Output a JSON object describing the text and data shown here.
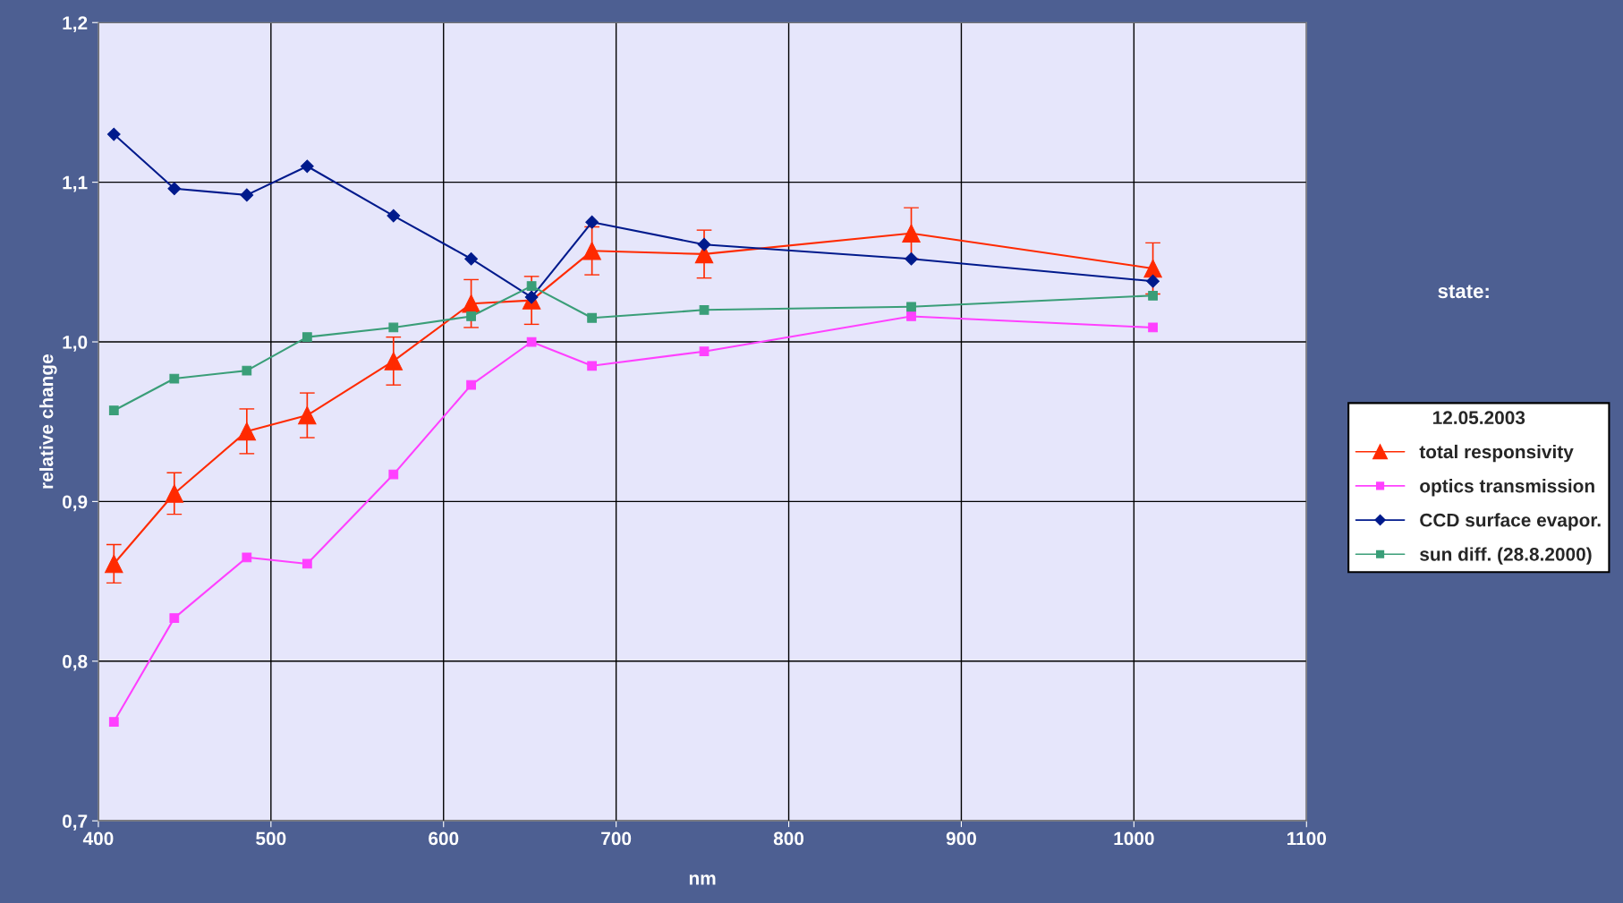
{
  "chart_data": {
    "type": "line",
    "xlabel": "nm",
    "ylabel": "relative change",
    "legend_title": "12.05.2003",
    "annotations": [
      "state:"
    ],
    "x": [
      409,
      444,
      486,
      521,
      571,
      616,
      651,
      686,
      751,
      871,
      1011
    ],
    "xlim": [
      400,
      1100
    ],
    "xticks": [
      400,
      500,
      600,
      700,
      800,
      900,
      1000,
      1100
    ],
    "ylim": [
      0.7,
      1.2
    ],
    "yticks": [
      {
        "value": 0.7,
        "label": "0,7"
      },
      {
        "value": 0.8,
        "label": "0,8"
      },
      {
        "value": 0.9,
        "label": "0,9"
      },
      {
        "value": 1.0,
        "label": "1,0"
      },
      {
        "value": 1.1,
        "label": "1,1"
      },
      {
        "value": 1.2,
        "label": "1,2"
      }
    ],
    "grid": true,
    "legend": "right",
    "series": [
      {
        "name": "total responsivity",
        "color": "#ff2a00",
        "marker": "triangle",
        "values": [
          0.861,
          0.905,
          0.944,
          0.954,
          0.988,
          1.024,
          1.026,
          1.057,
          1.055,
          1.068,
          1.046
        ],
        "errors": [
          0.012,
          0.013,
          0.014,
          0.014,
          0.015,
          0.015,
          0.015,
          0.015,
          0.015,
          0.016,
          0.016
        ]
      },
      {
        "name": "optics transmission",
        "color": "#ff40ff",
        "marker": "square",
        "values": [
          0.762,
          0.827,
          0.865,
          0.861,
          0.917,
          0.973,
          1.0,
          0.985,
          0.994,
          1.016,
          1.009
        ]
      },
      {
        "name": "CCD surface evapor.",
        "color": "#001a8c",
        "marker": "diamond",
        "values": [
          1.13,
          1.096,
          1.092,
          1.11,
          1.079,
          1.052,
          1.028,
          1.075,
          1.061,
          1.052,
          1.038
        ]
      },
      {
        "name": "sun diff. (28.8.2000)",
        "color": "#3a9e78",
        "marker": "square",
        "values": [
          0.957,
          0.977,
          0.982,
          1.003,
          1.009,
          1.016,
          1.035,
          1.015,
          1.02,
          1.022,
          1.029
        ]
      }
    ]
  }
}
